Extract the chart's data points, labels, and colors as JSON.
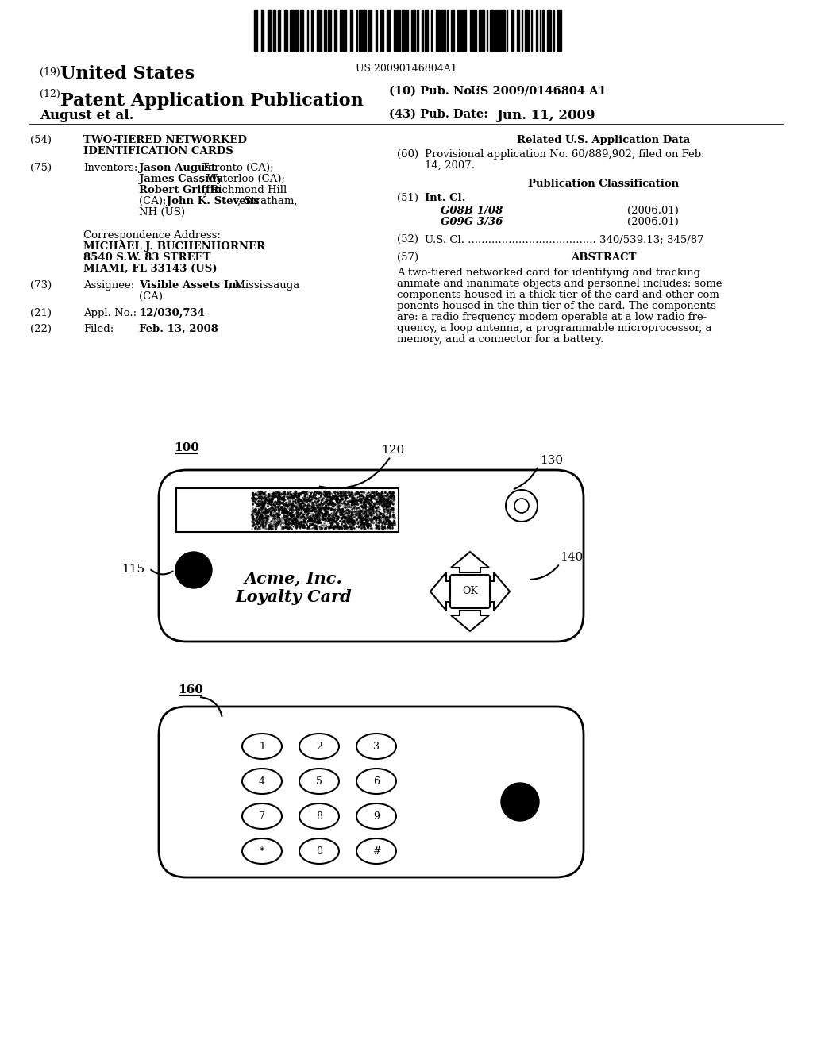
{
  "bg_color": "#ffffff",
  "barcode_text": "US 20090146804A1",
  "title19": "(19) United States",
  "title12": "(12) Patent Application Publication",
  "pub_no_label": "(10) Pub. No.:",
  "pub_no_value": "US 2009/0146804 A1",
  "pub_date_label": "(43) Pub. Date:",
  "pub_date_value": "Jun. 11, 2009",
  "author": "August et al.",
  "section54_label": "(54)",
  "section54_title_line1": "TWO-TIERED NETWORKED",
  "section54_title_line2": "IDENTIFICATION CARDS",
  "section75_label": "(75)",
  "section75_title": "Inventors:",
  "inv_bold1": "Jason August",
  "inv_norm1": ", Toronto (CA);",
  "inv_bold2": "James Cassidy",
  "inv_norm2": ", Waterloo (CA);",
  "inv_bold3": "Robert Griffin",
  "inv_norm3": ", Richmond Hill",
  "inv_norm3b": "(CA); ",
  "inv_bold4": "John K. Stevens",
  "inv_norm4": ", Stratham,",
  "inv_norm5": "NH (US)",
  "corr_header": "Correspondence Address:",
  "corr_line1": "MICHAEL J. BUCHENHORNER",
  "corr_line2": "8540 S.W. 83 STREET",
  "corr_line3": "MIAMI, FL 33143 (US)",
  "section73_label": "(73)",
  "section73_title": "Assignee:",
  "assignee_bold": "Visible Assets Inc.",
  "assignee_norm": ", Mississauga",
  "assignee_line2": "(CA)",
  "section21_label": "(21)",
  "section21_title": "Appl. No.:",
  "section21_content": "12/030,734",
  "section22_label": "(22)",
  "section22_title": "Filed:",
  "section22_content": "Feb. 13, 2008",
  "related_header": "Related U.S. Application Data",
  "section60_label": "(60)",
  "section60_line1": "Provisional application No. 60/889,902, filed on Feb.",
  "section60_line2": "14, 2007.",
  "pub_class_header": "Publication Classification",
  "section51_label": "(51)",
  "section51_title": "Int. Cl.",
  "section51_g08b": "G08B 1/08",
  "section51_g08b_year": "(2006.01)",
  "section51_g09g": "G09G 3/36",
  "section51_g09g_year": "(2006.01)",
  "section52_label": "(52)",
  "section52_content": "U.S. Cl. ...................................... 340/539.13; 345/87",
  "section57_label": "(57)",
  "section57_header": "ABSTRACT",
  "abstract_line1": "A two-tiered networked card for identifying and tracking",
  "abstract_line2": "animate and inanimate objects and personnel includes: some",
  "abstract_line3": "components housed in a thick tier of the card and other com-",
  "abstract_line4": "ponents housed in the thin tier of the card. The components",
  "abstract_line5": "are: a radio frequency modem operable at a low radio fre-",
  "abstract_line6": "quency, a loop antenna, a programmable microprocessor, a",
  "abstract_line7": "memory, and a connector for a battery.",
  "diagram1_label": "100",
  "diagram1_120": "120",
  "diagram1_130": "130",
  "diagram1_115": "115",
  "diagram1_140": "140",
  "diagram1_text1": "Acme, Inc.",
  "diagram1_text2": "Loyalty Card",
  "diagram2_label": "160"
}
